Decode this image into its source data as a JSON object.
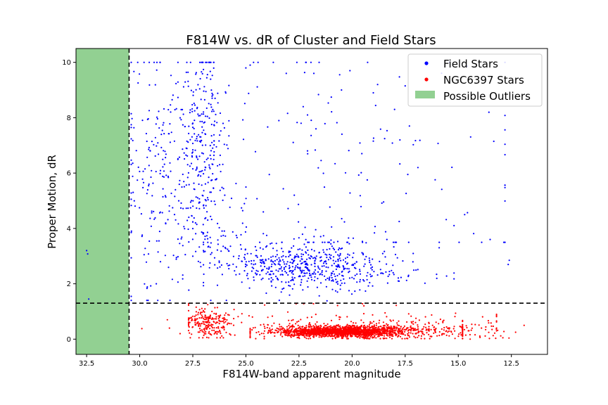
{
  "chart_data": {
    "type": "scatter",
    "title": "F814W vs. dR of Cluster and Field Stars",
    "xlabel": "F814W-band apparent magnitude",
    "ylabel": "Proper Motion, dR",
    "xlim": [
      33.0,
      10.8
    ],
    "ylim": [
      -0.55,
      10.5
    ],
    "x_inverted": true,
    "x_ticks": [
      "32.5",
      "30.0",
      "27.5",
      "25.0",
      "22.5",
      "20.0",
      "17.5",
      "15.0",
      "12.5"
    ],
    "x_tick_values": [
      32.5,
      30.0,
      27.5,
      25.0,
      22.5,
      20.0,
      17.5,
      15.0,
      12.5
    ],
    "y_ticks": [
      "0",
      "2",
      "4",
      "6",
      "8",
      "10"
    ],
    "y_tick_values": [
      0,
      2,
      4,
      6,
      8,
      10
    ],
    "grid": false,
    "legend_position": "top-right",
    "reference_lines": [
      {
        "orientation": "vertical",
        "value": 30.5,
        "style": "dashed",
        "color": "#000000"
      },
      {
        "orientation": "horizontal",
        "value": 1.3,
        "style": "dashed",
        "color": "#000000"
      }
    ],
    "shaded_regions": [
      {
        "name": "Possible Outliers",
        "x_from": 33.0,
        "x_to": 30.5,
        "color": "#92d092"
      }
    ],
    "series": [
      {
        "name": "Field Stars",
        "color": "#0000ff",
        "marker": "point",
        "clusters": [
          {
            "count": 420,
            "x_center": 21.8,
            "x_spread": 2.3,
            "y_center": 2.65,
            "y_spread": 0.45,
            "x_min": 15.2,
            "x_max": 27.0,
            "y_min": 1.35,
            "y_max": 4.2
          },
          {
            "count": 140,
            "x_center": 23.0,
            "x_spread": 1.3,
            "y_center": 2.6,
            "y_spread": 0.35,
            "x_min": 20.0,
            "x_max": 26.0,
            "y_min": 1.5,
            "y_max": 3.8
          },
          {
            "count": 270,
            "x_center": 27.0,
            "x_spread": 0.6,
            "y_center": 6.8,
            "y_spread": 2.0,
            "x_min": 25.8,
            "x_max": 28.2,
            "y_min": 1.4,
            "y_max": 10.0
          },
          {
            "count": 210,
            "x_center": 29.0,
            "x_spread": 0.9,
            "y_center": 5.8,
            "y_spread": 2.3,
            "x_min": 27.5,
            "x_max": 30.4,
            "y_min": 1.4,
            "y_max": 10.0
          },
          {
            "count": 140,
            "x_center": 20.5,
            "x_spread": 4.0,
            "y_center": 6.3,
            "y_spread": 2.6,
            "x_min": 12.8,
            "x_max": 27.0,
            "y_min": 3.5,
            "y_max": 10.0
          },
          {
            "count": 60,
            "x_center": 26.2,
            "x_spread": 0.8,
            "y_center": 3.9,
            "y_spread": 1.0,
            "x_min": 24.5,
            "x_max": 28.0,
            "y_min": 1.4,
            "y_max": 6.5
          }
        ],
        "points": [
          {
            "x": 32.5,
            "y": 3.2
          },
          {
            "x": 32.45,
            "y": 3.08
          },
          {
            "x": 32.4,
            "y": 1.45
          },
          {
            "x": 12.6,
            "y": 2.85
          },
          {
            "x": 12.65,
            "y": 2.7
          },
          {
            "x": 13.5,
            "y": 3.6
          },
          {
            "x": 14.7,
            "y": 4.5
          },
          {
            "x": 15.2,
            "y": 4.1
          },
          {
            "x": 15.9,
            "y": 3.3
          },
          {
            "x": 17.5,
            "y": 9.15
          },
          {
            "x": 18.0,
            "y": 8.3
          },
          {
            "x": 19.0,
            "y": 8.9
          },
          {
            "x": 20.5,
            "y": 9.0
          },
          {
            "x": 21.8,
            "y": 9.6
          },
          {
            "x": 25.0,
            "y": 9.8
          },
          {
            "x": 24.8,
            "y": 9.9
          },
          {
            "x": 17.3,
            "y": 7.7
          },
          {
            "x": 16.9,
            "y": 6.2
          },
          {
            "x": 22.3,
            "y": 8.4
          },
          {
            "x": 22.1,
            "y": 8.1
          },
          {
            "x": 22.4,
            "y": 7.8
          },
          {
            "x": 21.7,
            "y": 7.6
          },
          {
            "x": 22.6,
            "y": 10.0
          },
          {
            "x": 23.1,
            "y": 9.6
          },
          {
            "x": 18.8,
            "y": 9.2
          },
          {
            "x": 20.1,
            "y": 9.7
          }
        ]
      },
      {
        "name": "NGC6397 Stars",
        "color": "#ff0000",
        "marker": "point",
        "clusters": [
          {
            "count": 1500,
            "x_center": 20.6,
            "x_spread": 1.4,
            "y_center": 0.27,
            "y_spread": 0.09,
            "x_min": 16.0,
            "x_max": 24.8,
            "y_min": 0.03,
            "y_max": 0.65
          },
          {
            "count": 480,
            "x_center": 19.0,
            "x_spread": 2.6,
            "y_center": 0.3,
            "y_spread": 0.15,
            "x_min": 14.8,
            "x_max": 24.8,
            "y_min": 0.02,
            "y_max": 1.0
          },
          {
            "count": 220,
            "x_center": 26.7,
            "x_spread": 0.55,
            "y_center": 0.6,
            "y_spread": 0.28,
            "x_min": 25.2,
            "x_max": 27.7,
            "y_min": 0.05,
            "y_max": 1.28
          },
          {
            "count": 90,
            "x_center": 20.5,
            "x_spread": 3.8,
            "y_center": 0.7,
            "y_spread": 0.3,
            "x_min": 13.2,
            "x_max": 28.0,
            "y_min": 0.3,
            "y_max": 1.28
          },
          {
            "count": 40,
            "x_center": 14.0,
            "x_spread": 0.9,
            "y_center": 0.3,
            "y_spread": 0.15,
            "x_min": 12.0,
            "x_max": 15.5,
            "y_min": 0.0,
            "y_max": 0.8
          }
        ],
        "points": [
          {
            "x": 29.9,
            "y": 0.38
          },
          {
            "x": 28.7,
            "y": 0.7
          },
          {
            "x": 28.6,
            "y": 0.4
          },
          {
            "x": 11.9,
            "y": 0.5
          },
          {
            "x": 12.9,
            "y": 0.05
          },
          {
            "x": 13.2,
            "y": 0.4
          },
          {
            "x": 12.3,
            "y": 0.25
          },
          {
            "x": 28.1,
            "y": 0.2
          }
        ]
      }
    ]
  },
  "legend": {
    "items": [
      {
        "label": "Field Stars",
        "color": "#0000ff",
        "kind": "marker"
      },
      {
        "label": "NGC6397 Stars",
        "color": "#ff0000",
        "kind": "marker"
      },
      {
        "label": "Possible Outliers",
        "color": "#92d092",
        "kind": "patch"
      }
    ]
  }
}
